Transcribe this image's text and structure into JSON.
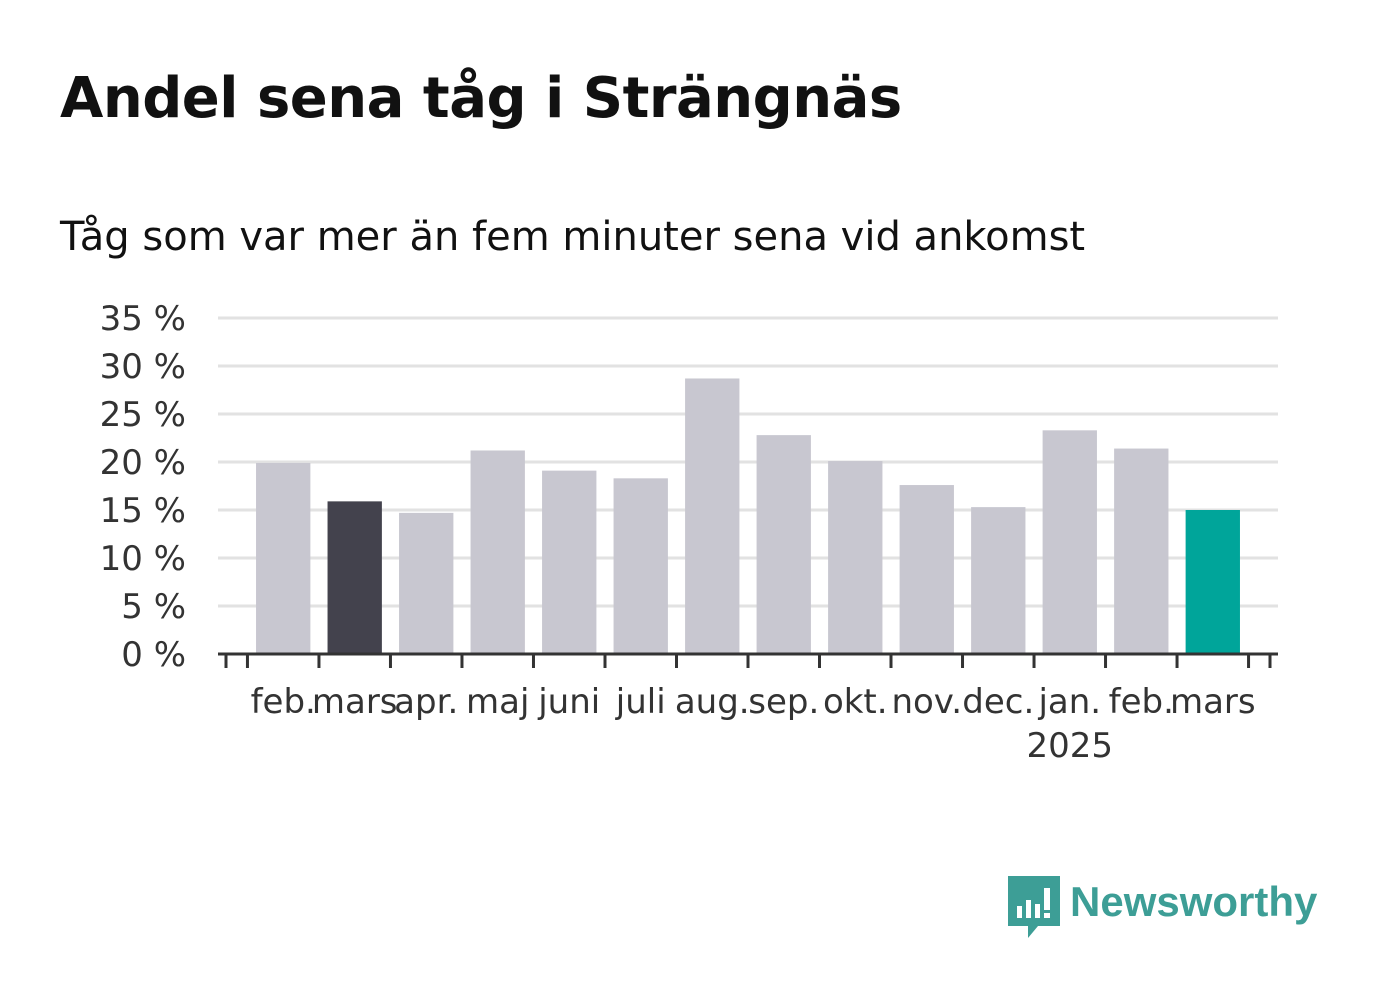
{
  "title": "Andel sena tåg i Strängnäs",
  "subtitle": "Tåg som var mer än fem minuter sena vid ankomst",
  "brand": {
    "name": "Newsworthy",
    "color": "#3d9e96",
    "icon": "newsworthy-logo-icon"
  },
  "colors": {
    "default_bar": "#c8c7d0",
    "comparison_bar": "#43424d",
    "current_bar": "#00a59a",
    "grid": "#e2e2e2",
    "axis": "#333333",
    "text": "#333333"
  },
  "chart_data": {
    "type": "bar",
    "categories": [
      "feb.",
      "mars",
      "apr.",
      "maj",
      "juni",
      "juli",
      "aug.",
      "sep.",
      "okt.",
      "nov.",
      "dec.",
      "jan.",
      "feb.",
      "mars"
    ],
    "year_labels": [
      "",
      "",
      "",
      "",
      "",
      "",
      "",
      "",
      "",
      "",
      "",
      "2025",
      "",
      ""
    ],
    "values": [
      19.9,
      15.9,
      14.7,
      21.2,
      19.1,
      18.3,
      28.7,
      22.8,
      20.1,
      17.6,
      15.3,
      23.3,
      21.4,
      15.0
    ],
    "highlight": [
      "default",
      "comparison",
      "default",
      "default",
      "default",
      "default",
      "default",
      "default",
      "default",
      "default",
      "default",
      "default",
      "default",
      "current"
    ],
    "yticks": [
      0,
      5,
      10,
      15,
      20,
      25,
      30,
      35
    ],
    "ytick_labels": [
      "0 %",
      "5 %",
      "10 %",
      "15 %",
      "20 %",
      "25 %",
      "30 %",
      "35 %"
    ],
    "ylim": [
      0,
      35
    ],
    "grid": true
  }
}
